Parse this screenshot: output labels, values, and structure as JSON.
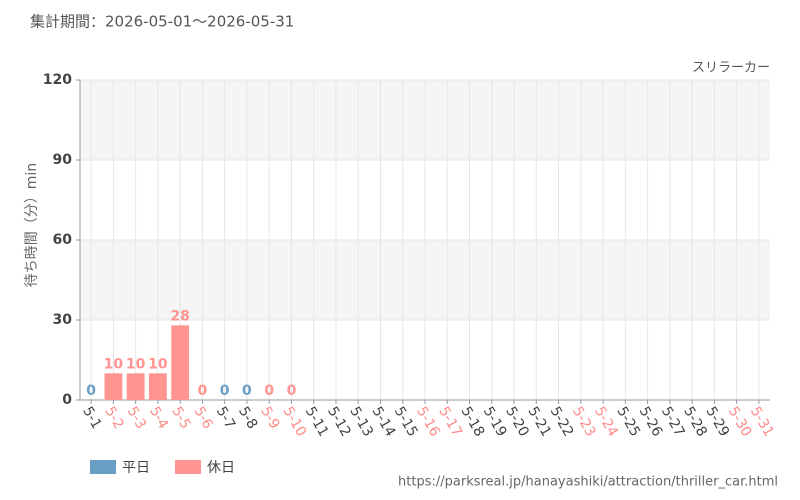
{
  "chart_data": {
    "type": "bar",
    "title": "集計期間：2026-05-01～2026-05-31",
    "annotation": "スリラーカー",
    "y_label": "待ち時間（分）min",
    "source": "https://parksreal.jp/hanayashiki/attraction/thriller_car.html",
    "categories": [
      "5-1",
      "5-2",
      "5-3",
      "5-4",
      "5-5",
      "5-6",
      "5-7",
      "5-8",
      "5-9",
      "5-10",
      "5-11",
      "5-12",
      "5-13",
      "5-14",
      "5-15",
      "5-16",
      "5-17",
      "5-18",
      "5-19",
      "5-20",
      "5-21",
      "5-22",
      "5-23",
      "5-24",
      "5-25",
      "5-26",
      "5-27",
      "5-28",
      "5-29",
      "5-30",
      "5-31"
    ],
    "category_colors": [
      "#444",
      "#ff8a87",
      "#ff8a87",
      "#ff8a87",
      "#ff8a87",
      "#ff8a87",
      "#444",
      "#444",
      "#ff8a87",
      "#ff8a87",
      "#444",
      "#444",
      "#444",
      "#444",
      "#444",
      "#ff8a87",
      "#ff8a87",
      "#444",
      "#444",
      "#444",
      "#444",
      "#444",
      "#ff8a87",
      "#ff8a87",
      "#444",
      "#444",
      "#444",
      "#444",
      "#444",
      "#ff8a87",
      "#ff8a87"
    ],
    "series": [
      {
        "name": "平日",
        "color": "#6a9ec5",
        "values": [
          0,
          null,
          null,
          null,
          null,
          null,
          0,
          0,
          null,
          null,
          null,
          null,
          null,
          null,
          null,
          null,
          null,
          null,
          null,
          null,
          null,
          null,
          null,
          null,
          null,
          null,
          null,
          null,
          null,
          null,
          null
        ]
      },
      {
        "name": "休日",
        "color": "#ff9491",
        "values": [
          null,
          10,
          10,
          10,
          28,
          0,
          null,
          null,
          0,
          0,
          null,
          null,
          null,
          null,
          null,
          null,
          null,
          null,
          null,
          null,
          null,
          null,
          null,
          null,
          null,
          null,
          null,
          null,
          null,
          null,
          null
        ]
      }
    ],
    "ylim": [
      0,
      120
    ],
    "yticks": [
      0,
      30,
      60,
      90,
      120
    ],
    "grid": true
  }
}
